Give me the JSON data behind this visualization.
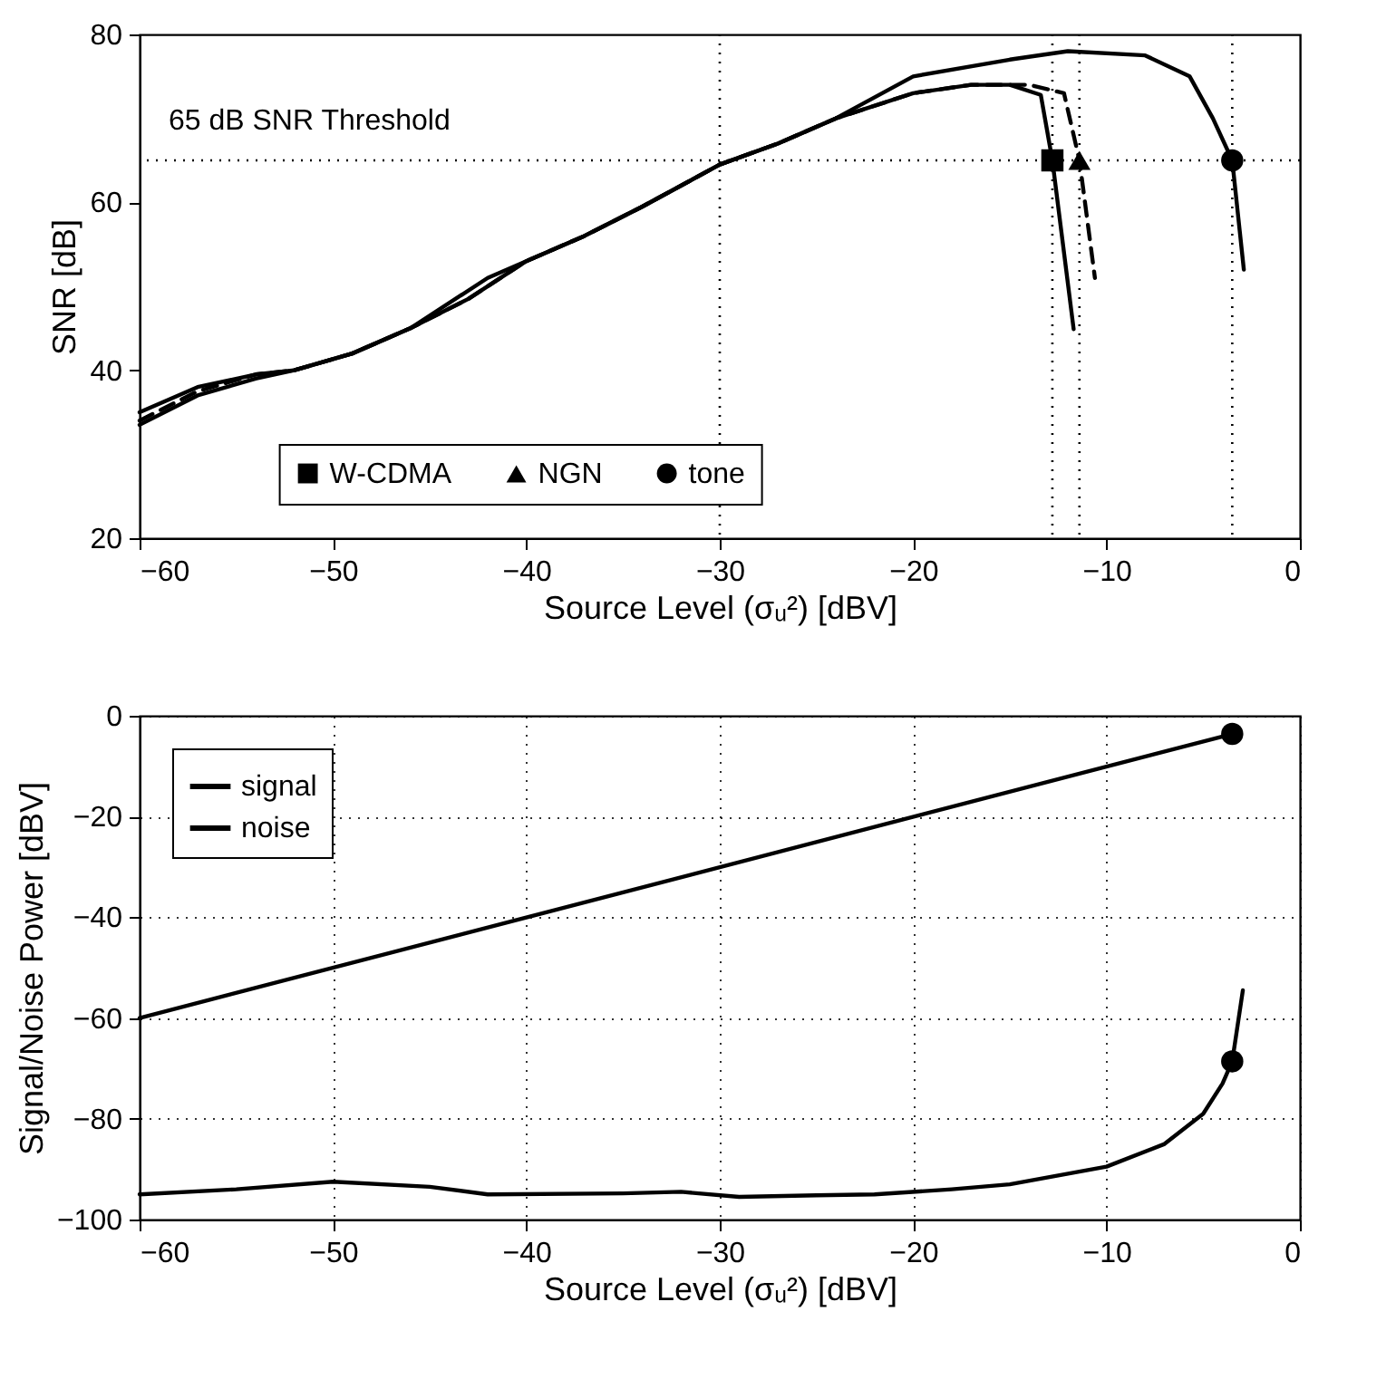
{
  "chart_data": [
    {
      "type": "line",
      "xlabel": "Source Level (σᵤ²) [dBV]",
      "ylabel": "SNR [dB]",
      "xlim": [
        -60,
        0
      ],
      "ylim": [
        20,
        80
      ],
      "xticks": [
        -60,
        -50,
        -40,
        -30,
        -20,
        -10,
        0
      ],
      "yticks": [
        20,
        40,
        60,
        80
      ],
      "grid": false,
      "legend": "bottom",
      "ref_lines": [
        {
          "axis": "y",
          "value": 65,
          "label": "65 dB SNR Threshold",
          "line_style": "dotted",
          "color": "#000000"
        },
        {
          "axis": "x",
          "value": -30,
          "line_style": "dotted",
          "color": "#000000"
        },
        {
          "axis": "x",
          "value": -12.8,
          "line_style": "dotted",
          "color": "#000000"
        },
        {
          "axis": "x",
          "value": -11.4,
          "line_style": "dotted",
          "color": "#000000"
        },
        {
          "axis": "x",
          "value": -3.5,
          "line_style": "dotted",
          "color": "#000000"
        }
      ],
      "series": [
        {
          "color": "#000000",
          "line_style": "solid",
          "marker": "none",
          "x": [
            -60,
            -57,
            -54,
            -52,
            -49,
            -46,
            -43,
            -40,
            -37,
            -34,
            -30,
            -27,
            -24,
            -20,
            -17,
            -15,
            -13.4,
            -12.8,
            -11.7
          ],
          "values": [
            33.5,
            37,
            39,
            40,
            42,
            45,
            48.5,
            53,
            56,
            59.5,
            64.5,
            67,
            70,
            73,
            74,
            74,
            72.8,
            65,
            44.9
          ]
        },
        {
          "color": "#000000",
          "line_style": "dashed",
          "marker": "none",
          "x": [
            -60,
            -57,
            -54,
            -52,
            -49,
            -46,
            -43,
            -40,
            -37,
            -34,
            -30,
            -27,
            -24,
            -20,
            -17,
            -14,
            -12.2,
            -11.4,
            -10.6
          ],
          "values": [
            34,
            37.5,
            39.5,
            40,
            42,
            45,
            48.5,
            53,
            56,
            59.5,
            64.5,
            67,
            70,
            73,
            74,
            74,
            73,
            65,
            51
          ]
        },
        {
          "color": "#000000",
          "line_style": "solid",
          "marker": "none",
          "x": [
            -60,
            -57,
            -54,
            -52,
            -49,
            -46,
            -42,
            -40,
            -37,
            -34,
            -30,
            -27,
            -24,
            -20,
            -15,
            -12,
            -8,
            -5.7,
            -4.5,
            -3.5,
            -2.9
          ],
          "values": [
            35,
            38,
            39.5,
            40,
            42,
            45,
            51,
            53,
            56,
            59.5,
            64.5,
            67,
            70,
            75,
            77,
            78,
            77.5,
            75,
            70,
            65,
            52
          ]
        },
        {
          "type": "scatter",
          "name": "W-CDMA",
          "color": "#000000",
          "marker": "square",
          "x": [
            -12.8
          ],
          "values": [
            65
          ]
        },
        {
          "type": "scatter",
          "name": "NGN",
          "color": "#000000",
          "marker": "triangle",
          "x": [
            -11.4
          ],
          "values": [
            65
          ]
        },
        {
          "type": "scatter",
          "name": "tone",
          "color": "#000000",
          "marker": "circle",
          "x": [
            -3.5
          ],
          "values": [
            65
          ]
        }
      ]
    },
    {
      "type": "line",
      "xlabel": "Source Level (σᵤ²) [dBV]",
      "ylabel": "Signal/Noise Power [dBV]",
      "xlim": [
        -60,
        0
      ],
      "ylim": [
        -100,
        0
      ],
      "xticks": [
        -60,
        -50,
        -40,
        -30,
        -20,
        -10,
        0
      ],
      "yticks": [
        -100,
        -80,
        -60,
        -40,
        -20,
        0
      ],
      "grid": true,
      "legend": "top left",
      "series": [
        {
          "name": "signal",
          "color": "#000000",
          "line_style": "solid",
          "marker": "none",
          "x": [
            -60,
            -3.5
          ],
          "values": [
            -60,
            -3.6
          ]
        },
        {
          "name": "noise",
          "color": "#000000",
          "line_style": "solid",
          "marker": "none",
          "x": [
            -60,
            -55,
            -50,
            -45,
            -42,
            -35,
            -32,
            -29,
            -25,
            -22,
            -18,
            -15,
            -10,
            -7,
            -5,
            -4,
            -3.5,
            -2.95
          ],
          "values": [
            -95,
            -94,
            -92.5,
            -93.5,
            -95,
            -94.8,
            -94.5,
            -95.5,
            -95.2,
            -95,
            -94,
            -93,
            -89.5,
            -85,
            -79,
            -73,
            -68.6,
            -54.5
          ]
        },
        {
          "type": "scatter",
          "color": "#000000",
          "marker": "circle",
          "x": [
            -3.5,
            -3.5
          ],
          "values": [
            -3.6,
            -68.6
          ]
        }
      ]
    }
  ]
}
